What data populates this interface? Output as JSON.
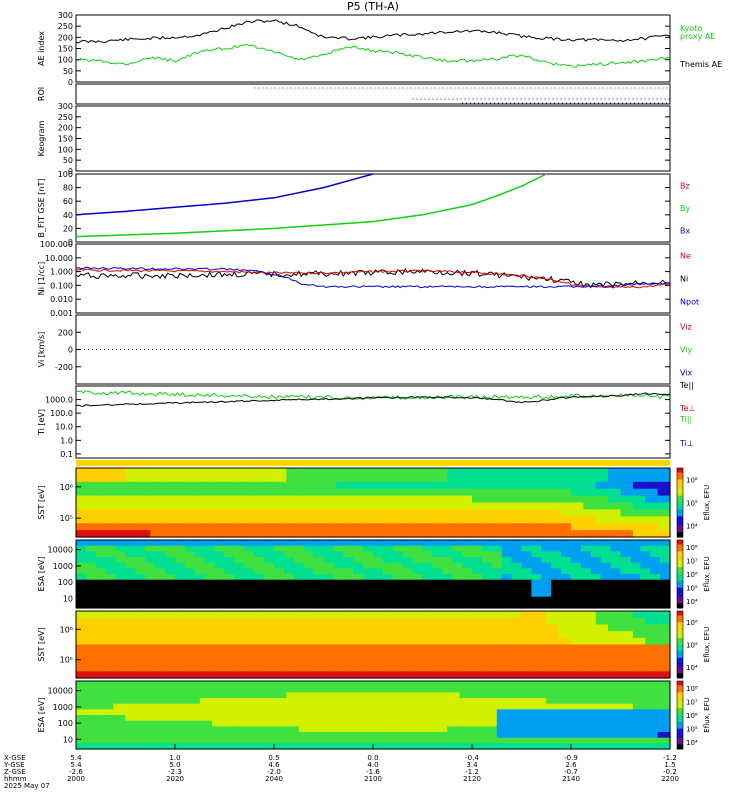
{
  "title": "P5 (TH-A)",
  "date_label": "2025 May 07",
  "colors": {
    "black": "#000000",
    "green": "#10d010",
    "red": "#dd0000",
    "blue": "#0000cc",
    "palette": [
      "#000000",
      "#6a0a8a",
      "#1a10d0",
      "#00a0f0",
      "#00e090",
      "#40e040",
      "#d0f000",
      "#ffd000",
      "#ff7000",
      "#e01010"
    ]
  },
  "xaxis": {
    "range": [
      "20:00",
      "22:00"
    ],
    "tick_labels": [
      "2000",
      "2020",
      "2040",
      "2100",
      "2120",
      "2140",
      "2200"
    ],
    "row_labels": [
      "X-GSE",
      "Y-GSE",
      "Z-GSE",
      "hhmm"
    ],
    "x_gse": [
      "5.4",
      "1.0",
      "0.5",
      "0.0",
      "-0.4",
      "-0.9",
      "-1.2"
    ],
    "y_gse": [
      "5.4",
      "5.0",
      "4.6",
      "4.0",
      "3.4",
      "2.6",
      "1.5"
    ],
    "z_gse": [
      "-2.6",
      "-2.3",
      "-2.0",
      "-1.6",
      "-1.2",
      "-0.7",
      "-0.2"
    ]
  },
  "chart_data": [
    {
      "id": "ae",
      "type": "line",
      "ylabel": "AE index",
      "ylim": [
        0,
        300
      ],
      "yticks": [
        "0",
        "50",
        "100",
        "150",
        "200",
        "250",
        "300"
      ],
      "legend": [
        "Kyoto",
        "proxy AE",
        "Themis AE"
      ],
      "series": [
        {
          "name": "Themis AE",
          "color": "black",
          "x": [
            0,
            5,
            10,
            15,
            20,
            25,
            30,
            35,
            40,
            45,
            50,
            55,
            60,
            65,
            70,
            75,
            80,
            85,
            90,
            95,
            100,
            105,
            110,
            115,
            120
          ],
          "values": [
            180,
            182,
            190,
            195,
            200,
            210,
            240,
            270,
            275,
            250,
            200,
            195,
            200,
            210,
            215,
            225,
            228,
            222,
            205,
            195,
            190,
            188,
            186,
            195,
            210
          ]
        },
        {
          "name": "proxy AE",
          "color": "green",
          "x": [
            0,
            5,
            10,
            15,
            20,
            25,
            30,
            35,
            40,
            45,
            50,
            55,
            60,
            65,
            70,
            75,
            80,
            85,
            90,
            95,
            100,
            105,
            110,
            115,
            120
          ],
          "values": [
            100,
            95,
            80,
            110,
            95,
            135,
            150,
            165,
            135,
            100,
            120,
            160,
            140,
            130,
            110,
            95,
            95,
            105,
            120,
            85,
            70,
            80,
            85,
            95,
            110
          ]
        }
      ]
    },
    {
      "id": "roi",
      "type": "scatter",
      "ylabel": "ROI",
      "series": [
        {
          "color": "red",
          "x": [
            36,
            120
          ],
          "level": 0.2
        },
        {
          "color": "blue",
          "x": [
            68,
            120
          ],
          "level": 0.65
        }
      ]
    },
    {
      "id": "keogram",
      "type": "heatmap",
      "ylabel": "Keogram",
      "ylim": [
        0,
        300
      ],
      "yticks": [
        "0",
        "50",
        "100",
        "150",
        "200",
        "250",
        "300"
      ]
    },
    {
      "id": "bfit",
      "type": "line",
      "ylabel": "B_FIT GSE [nT]",
      "ylim": [
        0,
        100
      ],
      "yticks": [
        "0",
        "20",
        "40",
        "60",
        "80",
        "100"
      ],
      "legend": [
        "Bz",
        "By",
        "Bx"
      ],
      "series": [
        {
          "name": "Bx",
          "color": "blue",
          "x": [
            0,
            10,
            20,
            30,
            40,
            50,
            55,
            60
          ],
          "values": [
            40,
            45,
            51,
            57,
            65,
            80,
            90,
            100
          ]
        },
        {
          "name": "By",
          "color": "green",
          "x": [
            0,
            20,
            40,
            60,
            70,
            80,
            85,
            90,
            95
          ],
          "values": [
            8,
            13,
            20,
            30,
            40,
            55,
            68,
            82,
            100
          ]
        }
      ]
    },
    {
      "id": "ni",
      "type": "line",
      "ylabel": "Ni [1/cc]",
      "yscale": "log",
      "ylim": [
        0.001,
        100
      ],
      "yticks": [
        "0.001",
        "0.010",
        "0.100",
        "1.000",
        "10.000",
        "100.000"
      ],
      "legend": [
        "Ne",
        "Ni",
        "Npot"
      ],
      "series": [
        {
          "name": "Ni",
          "color": "black",
          "x": [
            0,
            10,
            20,
            30,
            40,
            50,
            60,
            70,
            80,
            90,
            95,
            100,
            105,
            110,
            115,
            120
          ],
          "values": [
            0.5,
            0.5,
            0.55,
            0.6,
            0.65,
            0.7,
            0.8,
            1.0,
            0.8,
            0.4,
            0.3,
            0.15,
            0.1,
            0.12,
            0.15,
            0.2
          ]
        },
        {
          "name": "Ne",
          "color": "red",
          "x": [
            0,
            10,
            20,
            30,
            40,
            50,
            60,
            70,
            80,
            90,
            95,
            100,
            105,
            110,
            115,
            120
          ],
          "values": [
            1.3,
            1.2,
            1.1,
            1.0,
            0.8,
            0.8,
            1.0,
            1.1,
            0.9,
            0.5,
            0.3,
            0.12,
            0.07,
            0.07,
            0.08,
            0.12
          ]
        },
        {
          "name": "Npot",
          "color": "blue",
          "x": [
            0,
            10,
            20,
            30,
            35,
            40,
            45,
            50,
            60,
            70,
            80,
            90,
            100,
            110,
            120
          ],
          "values": [
            1.8,
            1.7,
            1.6,
            1.5,
            1.2,
            0.6,
            0.15,
            0.08,
            0.08,
            0.08,
            0.08,
            0.08,
            0.08,
            0.1,
            0.15
          ]
        }
      ]
    },
    {
      "id": "vi",
      "type": "line",
      "ylabel": "Vi [km/s]",
      "ylim": [
        -400,
        400
      ],
      "yticks": [
        "-200",
        "0",
        "200"
      ],
      "legend": [
        "Viz",
        "Viy",
        "Vix"
      ],
      "zero_line": true
    },
    {
      "id": "ti",
      "type": "line",
      "ylabel": "Ti [eV]",
      "yscale": "log",
      "ylim": [
        0.05,
        10000
      ],
      "yticks": [
        "0.1",
        "1.0",
        "10.0",
        "100.0",
        "1000.0"
      ],
      "legend": [
        "Te||",
        "Te⊥",
        "Ti||",
        "Ti⊥"
      ],
      "series": [
        {
          "name": "Ti||",
          "color": "green",
          "x": [
            0,
            10,
            20,
            30,
            40,
            50,
            60,
            70,
            80,
            90,
            95,
            100,
            110,
            120
          ],
          "values": [
            3500,
            3000,
            2500,
            2000,
            1600,
            1500,
            1400,
            1400,
            1500,
            1600,
            1500,
            1800,
            2000,
            1500
          ]
        },
        {
          "name": "Te||",
          "color": "black",
          "x": [
            0,
            10,
            20,
            30,
            40,
            50,
            60,
            70,
            80,
            85,
            90,
            95,
            100,
            110,
            115,
            120
          ],
          "values": [
            350,
            450,
            550,
            700,
            900,
            1100,
            1300,
            1500,
            1400,
            1000,
            600,
            900,
            1500,
            2000,
            2800,
            2500
          ]
        }
      ]
    },
    {
      "id": "ions_sst_en",
      "type": "heatmap",
      "ylabel": "SST [eV]",
      "yticks": [
        "10⁵",
        "10⁶"
      ],
      "cbar_ticks": [
        "10⁴",
        "10⁵",
        "10⁶"
      ],
      "cbar_label": "Eflux, EFU"
    },
    {
      "id": "ions_esa_en",
      "type": "heatmap",
      "ylabel": "ESA [eV]",
      "yticks": [
        "10",
        "100",
        "1000",
        "10000"
      ],
      "cbar_ticks": [
        "10⁴",
        "10⁵",
        "10⁶",
        "10⁷",
        "10⁸"
      ],
      "cbar_label": "Eflux, EFU"
    },
    {
      "id": "elec_sst_en",
      "type": "heatmap",
      "ylabel": "SST [eV]",
      "yticks": [
        "10⁵",
        "10⁶"
      ],
      "cbar_ticks": [
        "10⁴",
        "10⁵",
        "10⁶"
      ],
      "cbar_label": "Eflux, EFU"
    },
    {
      "id": "elec_esa_en",
      "type": "heatmap",
      "ylabel": "ESA [eV]",
      "yticks": [
        "10",
        "100",
        "1000",
        "10000"
      ],
      "cbar_ticks": [
        "10⁴",
        "10⁵",
        "10⁶",
        "10⁷",
        "10⁸"
      ],
      "cbar_label": "Eflux, EFU"
    }
  ]
}
